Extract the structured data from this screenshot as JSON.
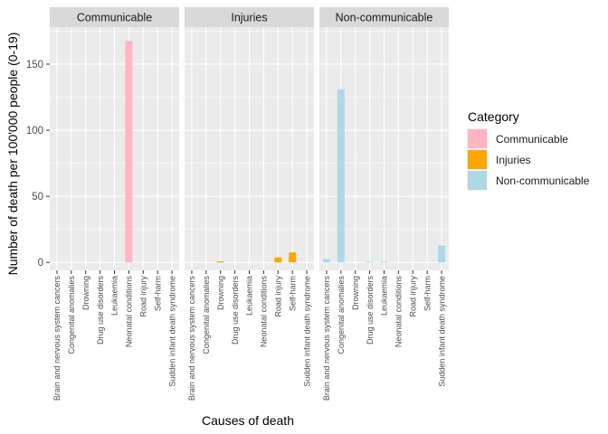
{
  "chart_data": {
    "type": "bar",
    "title": "",
    "xlabel": "Causes of death",
    "ylabel": "Number of death per 100'000 people (0-19)",
    "ylim": [
      -6,
      178
    ],
    "yticks": [
      0,
      50,
      100,
      150
    ],
    "grid": true,
    "legend_position": "right",
    "legend_title": "Category",
    "categories": [
      "Brain and nervous system cancers",
      "Congenital anomalies",
      "Drowning",
      "Drug use disorders",
      "Leukaemia",
      "Neonatal conditions",
      "Road injury",
      "Self-harm",
      "Sudden infant death syndrome"
    ],
    "series": [
      {
        "name": "Communicable",
        "color": "#FFB6C1",
        "values": [
          0,
          0,
          0,
          0,
          0,
          167.5,
          0,
          0,
          0
        ]
      },
      {
        "name": "Injuries",
        "color": "#FFA500",
        "values": [
          0,
          0,
          0.8,
          0,
          0,
          0,
          3.8,
          7.5,
          0
        ]
      },
      {
        "name": "Non-communicable",
        "color": "#ADD8E6",
        "values": [
          2.5,
          131,
          0,
          0.6,
          0.6,
          0,
          0,
          0,
          12.8
        ]
      }
    ]
  }
}
